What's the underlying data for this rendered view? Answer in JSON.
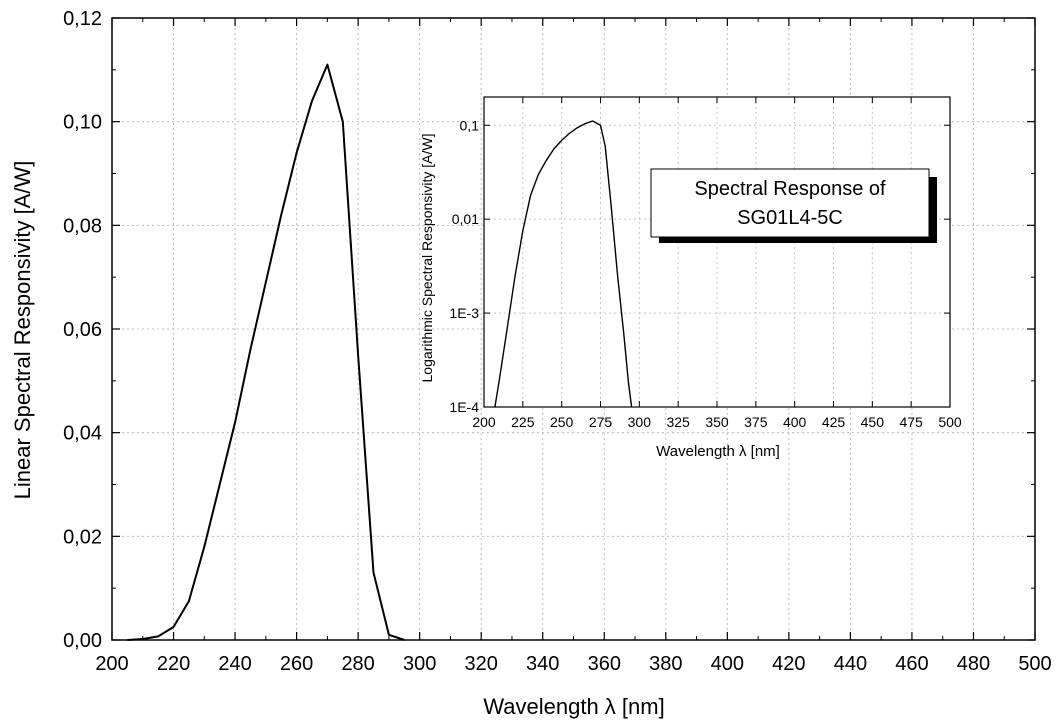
{
  "chart_data": [
    {
      "type": "line",
      "xlabel": "Wavelength λ [nm]",
      "ylabel": "Linear Spectral Responsivity [A/W]",
      "xlim": [
        200,
        500
      ],
      "ylim": [
        0,
        0.12
      ],
      "x_ticks": [
        200,
        220,
        240,
        260,
        280,
        300,
        320,
        340,
        360,
        380,
        400,
        420,
        440,
        460,
        480,
        500
      ],
      "y_ticks": [
        0,
        0.02,
        0.04,
        0.06,
        0.08,
        0.1,
        0.12
      ],
      "y_tick_labels": [
        "0,00",
        "0,02",
        "0,04",
        "0,06",
        "0,08",
        "0,10",
        "0,12"
      ],
      "grid": true,
      "series": [
        {
          "x": [
            205,
            210,
            215,
            220,
            225,
            230,
            235,
            240,
            245,
            250,
            255,
            260,
            265,
            270,
            275,
            280,
            285,
            290,
            295
          ],
          "y": [
            0.0,
            0.0002,
            0.0007,
            0.0025,
            0.0075,
            0.018,
            0.03,
            0.042,
            0.056,
            0.069,
            0.082,
            0.094,
            0.104,
            0.111,
            0.1,
            0.055,
            0.013,
            0.001,
            0.0
          ]
        }
      ]
    },
    {
      "type": "line",
      "xlabel": "Wavelength λ [nm]",
      "ylabel": "Logarithmic Spectral Responsivity [A/W]",
      "xlim": [
        200,
        500
      ],
      "ylim": [
        0.0001,
        0.2
      ],
      "yscale": "log",
      "x_ticks": [
        200,
        225,
        250,
        275,
        300,
        325,
        350,
        375,
        400,
        425,
        450,
        475,
        500
      ],
      "y_ticks": [
        0.0001,
        0.001,
        0.01,
        0.1
      ],
      "y_tick_labels": [
        "1E-4",
        "1E-3",
        "0,01",
        "0,1"
      ],
      "grid": true,
      "annotation": "Spectral Response of SG01L4-5C",
      "series": [
        {
          "x": [
            207,
            210,
            215,
            220,
            225,
            230,
            235,
            240,
            245,
            250,
            255,
            260,
            265,
            270,
            275,
            278,
            282,
            286,
            290,
            293,
            295
          ],
          "y": [
            0.0001,
            0.0002,
            0.0007,
            0.0025,
            0.0075,
            0.018,
            0.03,
            0.042,
            0.056,
            0.069,
            0.082,
            0.094,
            0.104,
            0.111,
            0.1,
            0.06,
            0.013,
            0.0025,
            0.0006,
            0.00018,
            0.0001
          ]
        }
      ]
    }
  ],
  "inset_box": {
    "line1": "Spectral Response of",
    "line2": "SG01L4-5C"
  }
}
